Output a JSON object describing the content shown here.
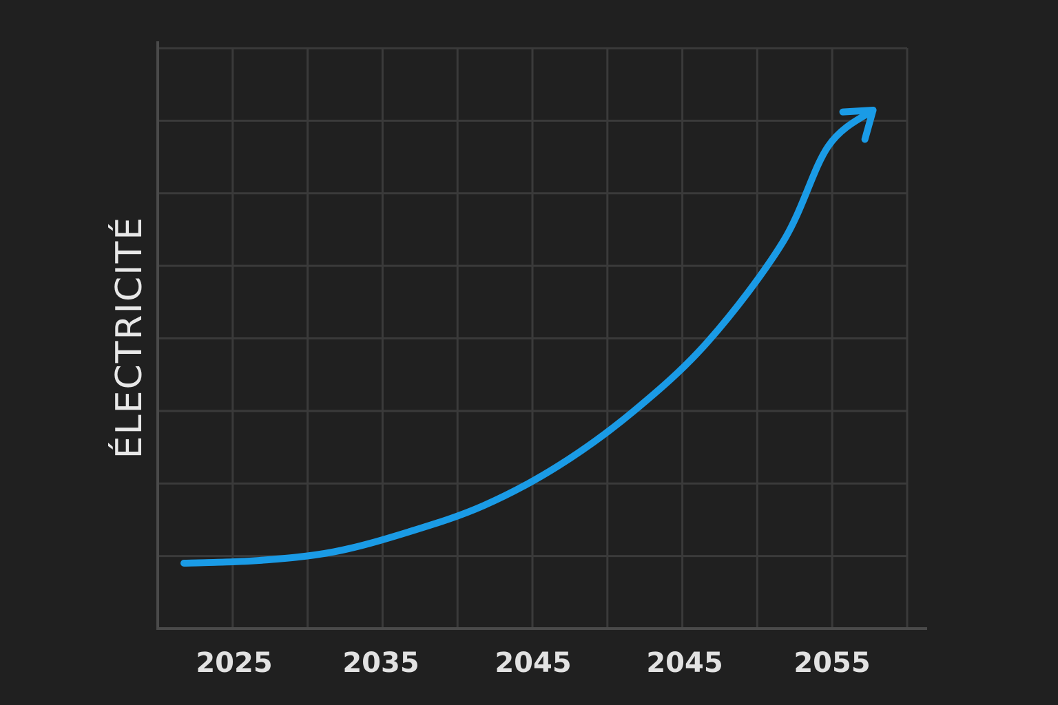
{
  "chart_data": {
    "type": "line",
    "title": "",
    "xlabel": "",
    "ylabel": "ÉLECTRICITÉ",
    "x_tick_labels": [
      "2025",
      "2035",
      "2045",
      "2045",
      "2055"
    ],
    "series": [
      {
        "values": [
          {
            "x": 0.0,
            "y": 0.0
          },
          {
            "x": 0.5,
            "y": 0.006
          },
          {
            "x": 1.0,
            "y": 0.025
          },
          {
            "x": 1.5,
            "y": 0.069
          },
          {
            "x": 2.0,
            "y": 0.127
          },
          {
            "x": 2.5,
            "y": 0.215
          },
          {
            "x": 3.0,
            "y": 0.335
          },
          {
            "x": 3.5,
            "y": 0.49
          },
          {
            "x": 4.0,
            "y": 0.71
          },
          {
            "x": 4.3,
            "y": 0.92
          },
          {
            "x": 4.6,
            "y": 1.0
          }
        ]
      }
    ],
    "x_range": [
      0,
      5
    ],
    "y_range": [
      0,
      1
    ],
    "y_ticks_shown": false,
    "grid": true,
    "line_color": "#1a9be6",
    "end_marker": "arrow",
    "background_color": "#202020"
  }
}
